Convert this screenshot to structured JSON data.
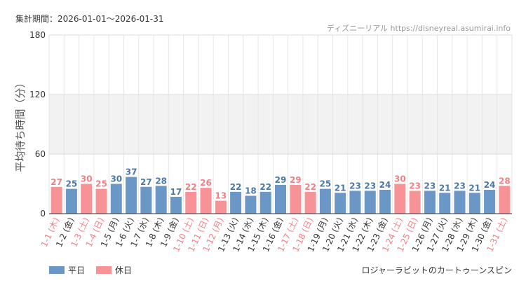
{
  "header": {
    "period_label": "集計期間：2026-01-01～2026-01-31",
    "source": "ディズニーリアル https://disneyreal.asumirai.info"
  },
  "footer": {
    "attraction": "ロジャーラビットのカートゥーンスピン"
  },
  "chart_data": {
    "type": "bar",
    "ylabel": "平均待ち時間（分）",
    "ylim": [
      0,
      180
    ],
    "yticks": [
      0,
      60,
      120,
      180
    ],
    "grid": true,
    "highlight_band": [
      60,
      120
    ],
    "legend_placement": "bottom-left",
    "legend": [
      {
        "key": "weekday",
        "label": "平日",
        "color": "#6a97c5"
      },
      {
        "key": "holiday",
        "label": "休日",
        "color": "#f79397"
      }
    ],
    "label_colors": {
      "weekday": "#4a78a8",
      "holiday": "#f07f86"
    },
    "tick_colors": {
      "weekday": "#333333",
      "holiday": "#f07f86"
    },
    "categories": [
      "1-1 (木)",
      "1-2 (金)",
      "1-3 (土)",
      "1-4 (日)",
      "1-5 (月)",
      "1-6 (火)",
      "1-7 (水)",
      "1-8 (木)",
      "1-9 (金)",
      "1-10 (土)",
      "1-11 (日)",
      "1-12 (月)",
      "1-13 (火)",
      "1-14 (水)",
      "1-15 (木)",
      "1-16 (金)",
      "1-17 (土)",
      "1-18 (日)",
      "1-19 (月)",
      "1-20 (火)",
      "1-21 (水)",
      "1-22 (木)",
      "1-23 (金)",
      "1-24 (土)",
      "1-25 (日)",
      "1-26 (月)",
      "1-27 (火)",
      "1-28 (水)",
      "1-29 (木)",
      "1-30 (金)",
      "1-31 (土)"
    ],
    "values": [
      27,
      25,
      30,
      25,
      30,
      37,
      27,
      28,
      17,
      22,
      26,
      13,
      22,
      18,
      22,
      29,
      29,
      22,
      25,
      21,
      23,
      23,
      24,
      30,
      23,
      23,
      21,
      23,
      21,
      24,
      28
    ],
    "day_type": [
      "holiday",
      "weekday",
      "holiday",
      "holiday",
      "weekday",
      "weekday",
      "weekday",
      "weekday",
      "weekday",
      "holiday",
      "holiday",
      "holiday",
      "weekday",
      "weekday",
      "weekday",
      "weekday",
      "holiday",
      "holiday",
      "weekday",
      "weekday",
      "weekday",
      "weekday",
      "weekday",
      "holiday",
      "holiday",
      "weekday",
      "weekday",
      "weekday",
      "weekday",
      "weekday",
      "holiday"
    ]
  }
}
